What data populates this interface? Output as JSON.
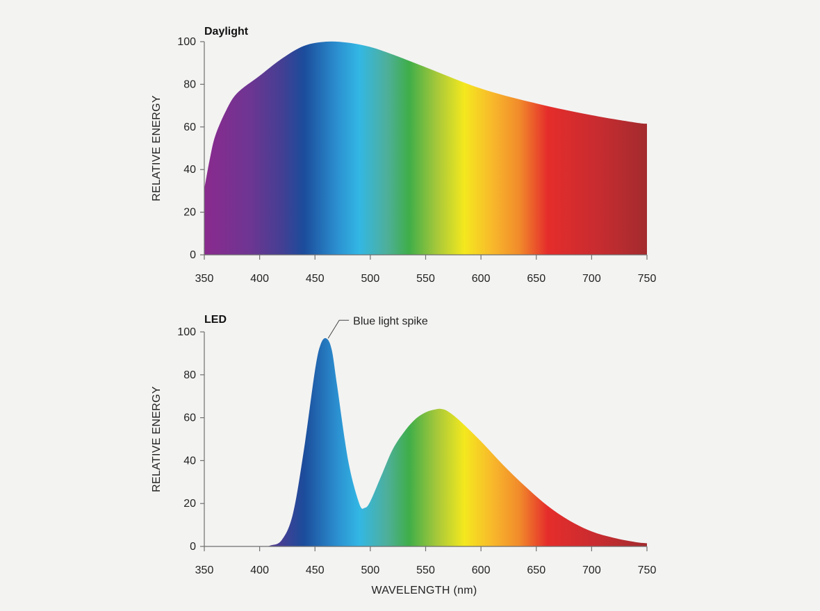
{
  "chart_data": [
    {
      "type": "area",
      "title": "Daylight",
      "xlabel": "",
      "ylabel": "RELATIVE ENERGY",
      "xlim": [
        350,
        750
      ],
      "ylim": [
        0,
        100
      ],
      "x_ticks": [
        "350",
        "400",
        "450",
        "500",
        "550",
        "600",
        "650",
        "700",
        "750"
      ],
      "y_ticks": [
        "0",
        "20",
        "40",
        "60",
        "80",
        "100"
      ],
      "grid": false,
      "fill": "visible-spectrum gradient",
      "series": [
        {
          "x": [
            350,
            355,
            360,
            370,
            380,
            400,
            420,
            440,
            460,
            480,
            500,
            520,
            550,
            600,
            650,
            700,
            740,
            750
          ],
          "values": [
            31,
            45,
            56,
            68,
            76,
            84,
            92,
            98,
            100,
            99.5,
            97.5,
            94,
            88,
            78,
            71,
            65.5,
            62,
            61.5
          ]
        }
      ]
    },
    {
      "type": "area",
      "title": "LED",
      "xlabel": "WAVELENGTH (nm)",
      "ylabel": "RELATIVE ENERGY",
      "xlim": [
        350,
        750
      ],
      "ylim": [
        0,
        100
      ],
      "x_ticks": [
        "350",
        "400",
        "450",
        "500",
        "550",
        "600",
        "650",
        "700",
        "750"
      ],
      "y_ticks": [
        "0",
        "20",
        "40",
        "60",
        "80",
        "100"
      ],
      "grid": false,
      "fill": "visible-spectrum gradient",
      "annotations": [
        {
          "text": "Blue light spike",
          "x": 460,
          "y": 97
        }
      ],
      "series": [
        {
          "x": [
            350,
            400,
            410,
            420,
            430,
            440,
            450,
            455,
            460,
            465,
            470,
            480,
            490,
            495,
            500,
            510,
            520,
            530,
            540,
            550,
            560,
            565,
            570,
            580,
            600,
            620,
            640,
            660,
            680,
            700,
            720,
            740,
            750
          ],
          "values": [
            0,
            0,
            0.5,
            3,
            15,
            45,
            82,
            94,
            97,
            92,
            75,
            40,
            20,
            18,
            21,
            33,
            45,
            53,
            59,
            62.5,
            64,
            64,
            63,
            59,
            49,
            38,
            28,
            19,
            12,
            7,
            4,
            2,
            1.5
          ]
        }
      ]
    }
  ],
  "colors": {
    "background": "#f3f3f2",
    "axis": "#6f6f6f",
    "text": "#222222",
    "spectrum_stops": [
      {
        "nm": 350,
        "color": "#8a2a8e"
      },
      {
        "nm": 390,
        "color": "#6f3592"
      },
      {
        "nm": 420,
        "color": "#443f93"
      },
      {
        "nm": 440,
        "color": "#1b4c9b"
      },
      {
        "nm": 470,
        "color": "#2b8fd0"
      },
      {
        "nm": 490,
        "color": "#33b7e4"
      },
      {
        "nm": 515,
        "color": "#4eaf9b"
      },
      {
        "nm": 535,
        "color": "#3fae49"
      },
      {
        "nm": 560,
        "color": "#a6c83a"
      },
      {
        "nm": 585,
        "color": "#f4e81e"
      },
      {
        "nm": 610,
        "color": "#f8b92b"
      },
      {
        "nm": 635,
        "color": "#f18a2b"
      },
      {
        "nm": 660,
        "color": "#e52d2b"
      },
      {
        "nm": 705,
        "color": "#c82c30"
      },
      {
        "nm": 750,
        "color": "#a32b2e"
      }
    ]
  }
}
